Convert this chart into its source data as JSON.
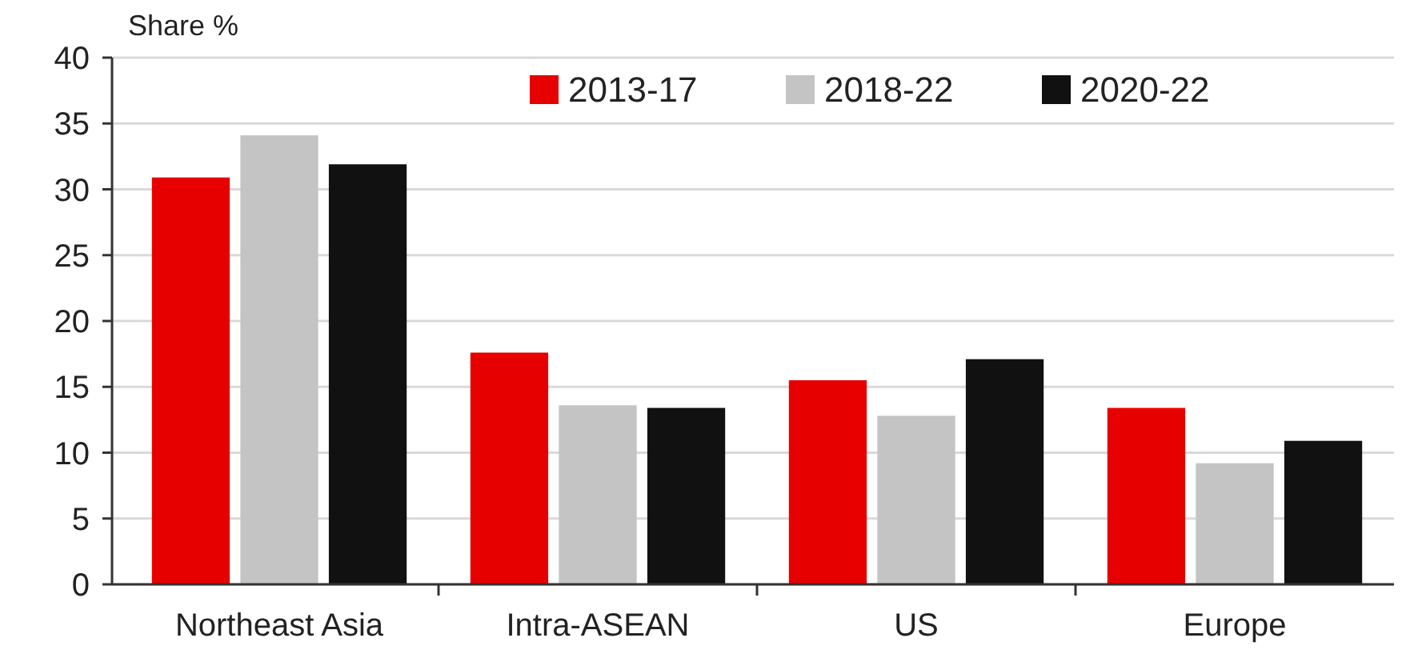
{
  "chart_data": {
    "type": "bar",
    "ylabel": "Share %",
    "categories": [
      "Northeast Asia",
      "Intra-ASEAN",
      "US",
      "Europe"
    ],
    "series": [
      {
        "name": "2013-17",
        "color": "#e60000",
        "values": [
          30.9,
          17.6,
          15.5,
          13.4
        ]
      },
      {
        "name": "2018-22",
        "color": "#c4c4c4",
        "values": [
          34.1,
          13.6,
          12.8,
          9.2
        ]
      },
      {
        "name": "2020-22",
        "color": "#111111",
        "values": [
          31.9,
          13.4,
          17.1,
          10.9
        ]
      }
    ],
    "ylim": [
      0,
      40
    ],
    "yticks": [
      0,
      5,
      10,
      15,
      20,
      25,
      30,
      35,
      40
    ],
    "grid": "y",
    "legend": "top right"
  }
}
